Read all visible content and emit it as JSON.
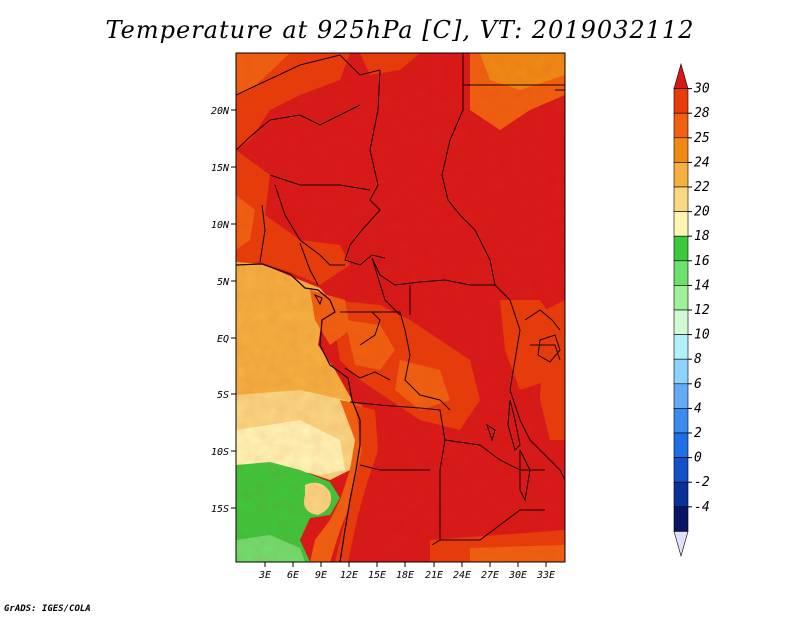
{
  "title": "Temperature at 925hPa [C], VT: 2019032112",
  "credit": "GrADS: IGES/COLA",
  "map": {
    "lon_labels": [
      "3E",
      "6E",
      "9E",
      "12E",
      "15E",
      "18E",
      "21E",
      "24E",
      "27E",
      "30E",
      "33E"
    ],
    "lat_labels": [
      "20N",
      "15N",
      "10N",
      "5N",
      "EQ",
      "5S",
      "10S",
      "15S"
    ]
  },
  "colorbar": {
    "labels": [
      "30",
      "28",
      "25",
      "24",
      "22",
      "20",
      "18",
      "16",
      "14",
      "12",
      "10",
      "8",
      "6",
      "4",
      "2",
      "0",
      "-2",
      "-4"
    ],
    "colors": [
      "#d81818",
      "#e83c0a",
      "#f06010",
      "#f08a14",
      "#f5b040",
      "#fad782",
      "#fff5b4",
      "#3cc83c",
      "#6ee06e",
      "#a0f09a",
      "#d2fad2",
      "#b4f0fa",
      "#8cd2fa",
      "#64aaf5",
      "#3c8cf0",
      "#1e6ee6",
      "#1450c8",
      "#0a3296",
      "#0a1464",
      "#e0e0f8"
    ]
  }
}
